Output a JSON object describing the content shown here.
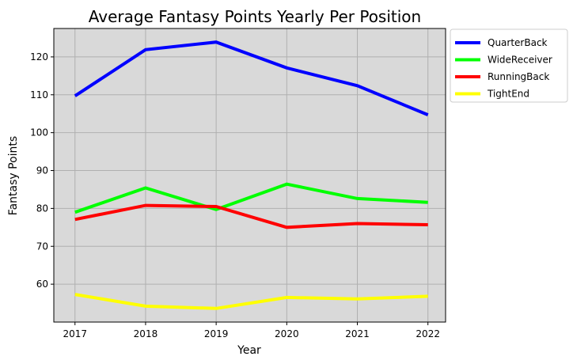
{
  "chart_data": {
    "type": "line",
    "title": "Average Fantasy Points Yearly Per Position",
    "xlabel": "Year",
    "ylabel": "Fantasy Points",
    "x": [
      2017,
      2018,
      2019,
      2020,
      2021,
      2022
    ],
    "xlim": [
      2016.7,
      2022.25
    ],
    "ylim": [
      50,
      127.5
    ],
    "yticks": [
      60,
      70,
      80,
      90,
      100,
      110,
      120
    ],
    "grid": true,
    "legend": "outside-top-right",
    "plot_background": "#d9d9d9",
    "grid_color": "#b0b0b0",
    "series": [
      {
        "name": "QuarterBack",
        "color": "#0000ff",
        "values": [
          109.7,
          121.9,
          123.9,
          117.1,
          112.4,
          104.7
        ]
      },
      {
        "name": "WideReceiver",
        "color": "#00ff00",
        "values": [
          79.0,
          85.4,
          79.7,
          86.4,
          82.6,
          81.6
        ]
      },
      {
        "name": "RunningBack",
        "color": "#ff0000",
        "values": [
          77.1,
          80.8,
          80.5,
          75.0,
          76.0,
          75.7
        ]
      },
      {
        "name": "TightEnd",
        "color": "#ffff00",
        "values": [
          57.3,
          54.2,
          53.6,
          56.5,
          56.1,
          56.8
        ]
      }
    ]
  }
}
